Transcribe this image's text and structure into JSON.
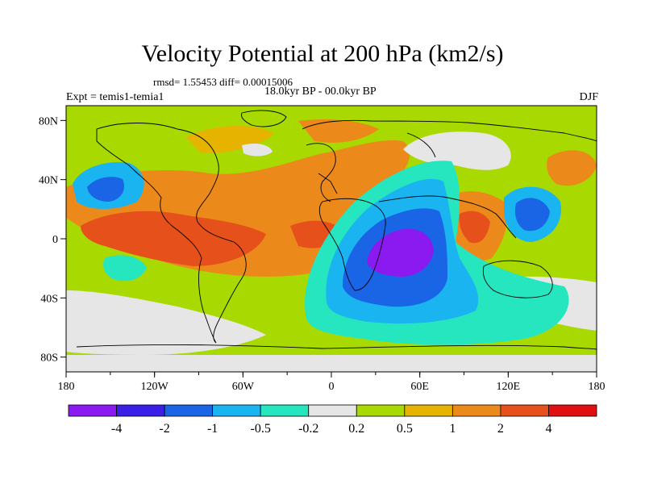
{
  "title": "Velocity Potential at 200 hPa (km2/s)",
  "stats": "rmsd= 1.55453 diff= 0.00015006",
  "period": "18.0kyr BP - 00.0kyr BP",
  "experiment": "Expt = temis1-temia1",
  "season": "DJF",
  "map": {
    "type": "filled-contour",
    "projection": "cylindrical-equidistant",
    "lon_range": [
      -180,
      180
    ],
    "lat_range": [
      -90,
      90
    ],
    "x_tick_labels": [
      "180",
      "120W",
      "60W",
      "0",
      "60E",
      "120E",
      "180"
    ],
    "y_tick_labels": [
      "80N",
      "40N",
      "0",
      "40S",
      "80S"
    ],
    "background_level_color": "#a8d900"
  },
  "colorbar": {
    "colors": [
      "#8a1af0",
      "#3a1fe6",
      "#1a64e6",
      "#1ab4f0",
      "#26e6c0",
      "#e6e6e6",
      "#a8d900",
      "#e6b400",
      "#eb8a1a",
      "#e6501a",
      "#e01010"
    ],
    "labels": [
      "-4",
      "-2",
      "-1",
      "-0.5",
      "-0.2",
      "0.2",
      "0.5",
      "1",
      "2",
      "4"
    ]
  }
}
